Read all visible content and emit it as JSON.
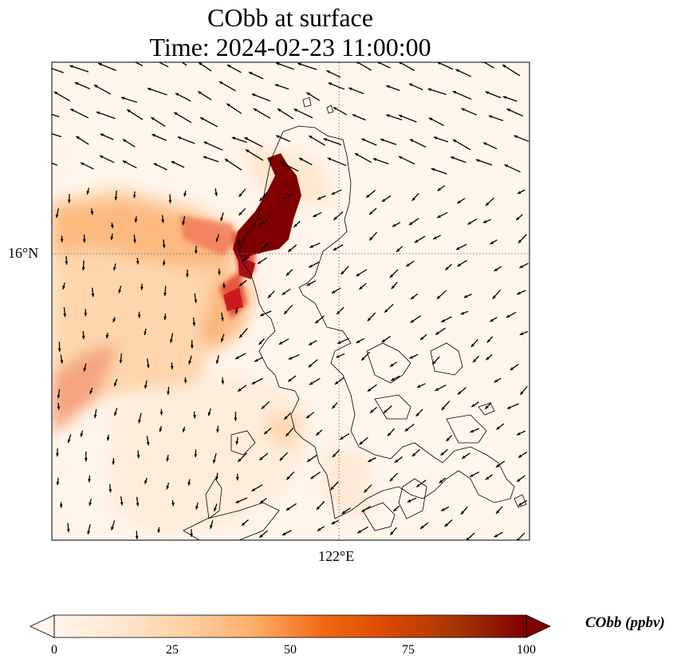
{
  "figure": {
    "title_line1": "CObb at surface",
    "title_line2": "Time: 2024-02-23 11:00:00",
    "lat_label": "16°N",
    "lon_label": "122°E"
  },
  "colorbar": {
    "label": "CObb (ppbv)",
    "ticks": [
      "0",
      "25",
      "50",
      "75",
      "100"
    ],
    "min": 0,
    "max": 100,
    "extend": "both",
    "colormap": [
      "#fff5eb",
      "#fee6ce",
      "#fdd0a2",
      "#fdae6b",
      "#f16913",
      "#d94801",
      "#a63603",
      "#7f0000"
    ]
  },
  "map": {
    "gridlines": "dotted",
    "plume_color_max": "#7f0000",
    "background_color": "#fff5eb"
  }
}
